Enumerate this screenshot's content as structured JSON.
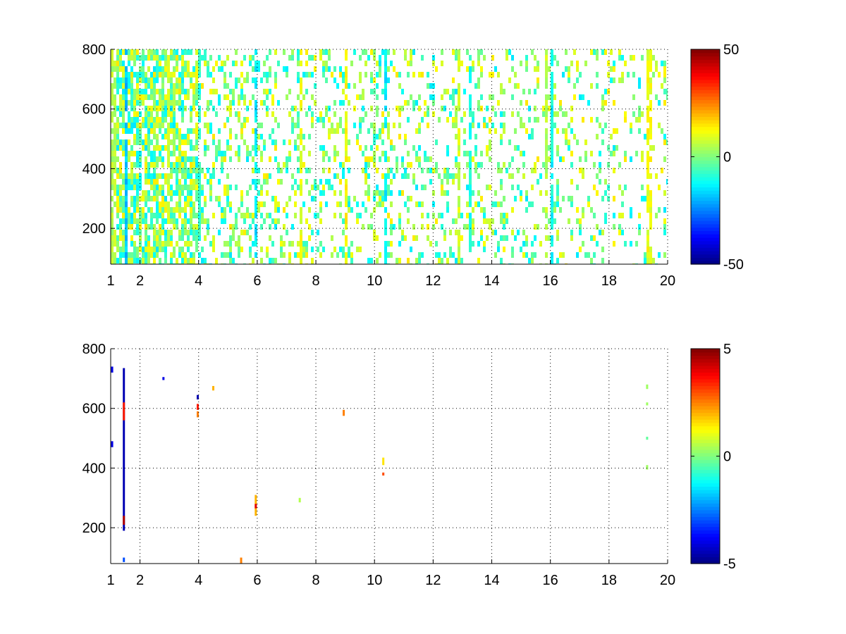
{
  "chart_data": [
    {
      "type": "heatmap",
      "title": "",
      "xlabel": "",
      "ylabel": "",
      "xlim": [
        1,
        20
      ],
      "ylim": [
        80,
        800
      ],
      "x_ticks": [
        1,
        2,
        4,
        6,
        8,
        10,
        12,
        14,
        16,
        18,
        20
      ],
      "y_ticks": [
        200,
        400,
        600,
        800
      ],
      "grid": true,
      "grid_style": "dotted",
      "colorscale": "jet",
      "colorbar": {
        "min": -50,
        "max": 50,
        "ticks": [
          -50,
          0,
          50
        ]
      },
      "density": "dense",
      "noise_value_range": [
        -15,
        15
      ],
      "bands": [
        {
          "x_range": [
            1.0,
            1.1
          ],
          "value": 5
        },
        {
          "x_range": [
            1.4,
            1.5
          ],
          "value": -18
        },
        {
          "x_range": [
            2.9,
            3.0
          ],
          "value": 8
        },
        {
          "x_range": [
            3.95,
            4.05
          ],
          "value": -8
        },
        {
          "x_range": [
            5.9,
            6.0
          ],
          "value": -14
        },
        {
          "x_range": [
            7.4,
            7.5
          ],
          "value": 10
        },
        {
          "x_range": [
            8.95,
            9.05
          ],
          "value": 12
        },
        {
          "x_range": [
            10.3,
            10.4
          ],
          "value": -14
        },
        {
          "x_range": [
            12.8,
            12.9
          ],
          "value": 8
        },
        {
          "x_range": [
            13.2,
            13.3
          ],
          "value": -10
        },
        {
          "x_range": [
            15.8,
            15.9
          ],
          "value": 6
        },
        {
          "x_range": [
            16.0,
            16.1
          ],
          "value": -12
        },
        {
          "x_range": [
            19.2,
            19.4
          ],
          "value": 11
        }
      ]
    },
    {
      "type": "heatmap",
      "title": "",
      "xlabel": "",
      "ylabel": "",
      "xlim": [
        1,
        20
      ],
      "ylim": [
        80,
        800
      ],
      "x_ticks": [
        1,
        2,
        4,
        6,
        8,
        10,
        12,
        14,
        16,
        18,
        20
      ],
      "y_ticks": [
        200,
        400,
        600,
        800
      ],
      "grid": true,
      "grid_style": "dotted",
      "colorscale": "jet",
      "colorbar": {
        "min": -5,
        "max": 5,
        "ticks": [
          -5,
          0,
          5
        ]
      },
      "density": "sparse",
      "cells": [
        {
          "x": 1.45,
          "y0": 190,
          "y1": 735,
          "value": -4.5
        },
        {
          "x": 1.45,
          "y0": 210,
          "y1": 240,
          "value": 4.5
        },
        {
          "x": 1.45,
          "y0": 560,
          "y1": 620,
          "value": 3.5
        },
        {
          "x": 1.05,
          "y0": 720,
          "y1": 740,
          "value": -4
        },
        {
          "x": 1.05,
          "y0": 470,
          "y1": 490,
          "value": -4
        },
        {
          "x": 1.45,
          "y0": 85,
          "y1": 100,
          "value": -3
        },
        {
          "x": 2.8,
          "y0": 695,
          "y1": 705,
          "value": -4
        },
        {
          "x": 3.97,
          "y0": 630,
          "y1": 645,
          "value": -4.5
        },
        {
          "x": 3.97,
          "y0": 595,
          "y1": 615,
          "value": 3.5
        },
        {
          "x": 3.97,
          "y0": 570,
          "y1": 590,
          "value": 2.5
        },
        {
          "x": 4.5,
          "y0": 660,
          "y1": 675,
          "value": 2
        },
        {
          "x": 5.45,
          "y0": 80,
          "y1": 100,
          "value": 2.5
        },
        {
          "x": 5.95,
          "y0": 240,
          "y1": 310,
          "value": 2
        },
        {
          "x": 5.95,
          "y0": 265,
          "y1": 280,
          "value": 4
        },
        {
          "x": 7.45,
          "y0": 285,
          "y1": 300,
          "value": 0.5
        },
        {
          "x": 8.95,
          "y0": 575,
          "y1": 595,
          "value": 2.5
        },
        {
          "x": 10.3,
          "y0": 410,
          "y1": 435,
          "value": 1.5
        },
        {
          "x": 10.3,
          "y0": 375,
          "y1": 385,
          "value": 3
        },
        {
          "x": 19.3,
          "y0": 665,
          "y1": 680,
          "value": 0.3
        },
        {
          "x": 19.3,
          "y0": 610,
          "y1": 620,
          "value": 0.3
        },
        {
          "x": 19.3,
          "y0": 495,
          "y1": 505,
          "value": -0.3
        },
        {
          "x": 19.3,
          "y0": 395,
          "y1": 410,
          "value": 0.3
        }
      ]
    }
  ]
}
